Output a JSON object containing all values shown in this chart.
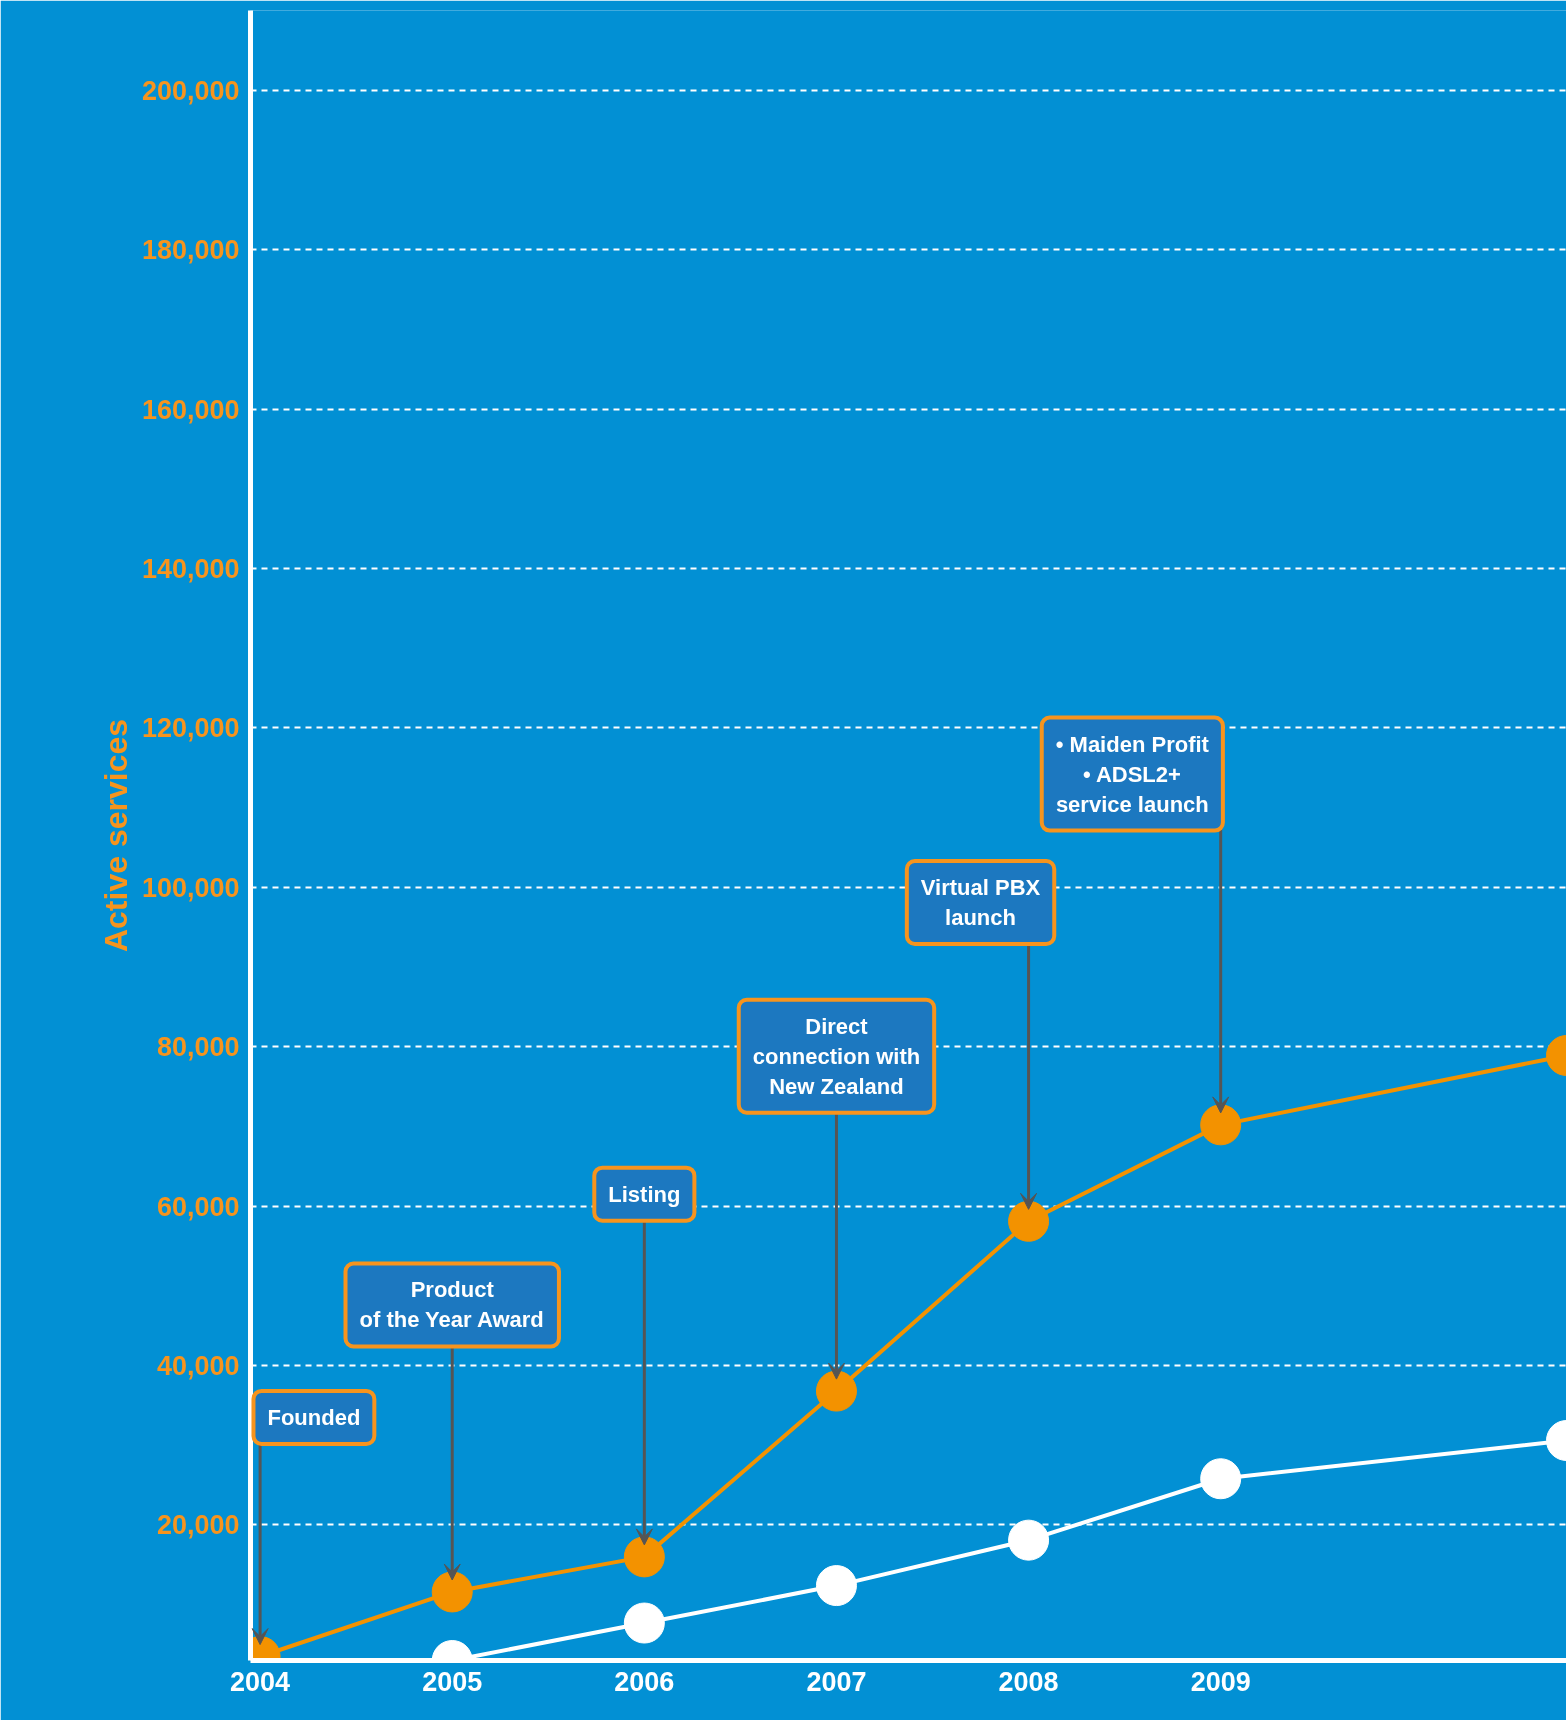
{
  "chart_data": {
    "type": "line",
    "ylabel": "Active services",
    "series": [
      {
        "color": "#f39200",
        "x": [
          2004,
          2005,
          2006,
          2007,
          2008,
          2009,
          2010.8
        ],
        "values": [
          3500,
          11600,
          16000,
          36800,
          58100,
          70200,
          78900
        ]
      },
      {
        "color": "#ffffff",
        "x": [
          2005,
          2006,
          2007,
          2008,
          2009,
          2010.8
        ],
        "values": [
          3000,
          7700,
          12400,
          18100,
          25800,
          30600
        ]
      }
    ],
    "xlim": [
      2003.95,
      2010.8
    ],
    "ylim": [
      3000,
      210000
    ],
    "xticks": [
      2004,
      2005,
      2006,
      2007,
      2008,
      2009
    ],
    "yticks": [
      {
        "value": 20000,
        "label": "20,000"
      },
      {
        "value": 40000,
        "label": "40,000"
      },
      {
        "value": 60000,
        "label": "60,000"
      },
      {
        "value": 80000,
        "label": "80,000"
      },
      {
        "value": 100000,
        "label": "100,000"
      },
      {
        "value": 120000,
        "label": "120,000"
      },
      {
        "value": 140000,
        "label": "140,000"
      },
      {
        "value": 160000,
        "label": "160,000"
      },
      {
        "value": 180000,
        "label": "180,000"
      },
      {
        "value": 200000,
        "label": "200,000"
      }
    ],
    "grid": "y",
    "marker": "circle",
    "line_style": "solid",
    "annotations": [
      "Founded",
      "Product\nof the Year Award",
      "Listing",
      "Direct\nconnection with\nNew Zealand",
      "Virtual PBX\nlaunch",
      "• Maiden Profit\n• ADSL2+\nservice launch"
    ]
  }
}
